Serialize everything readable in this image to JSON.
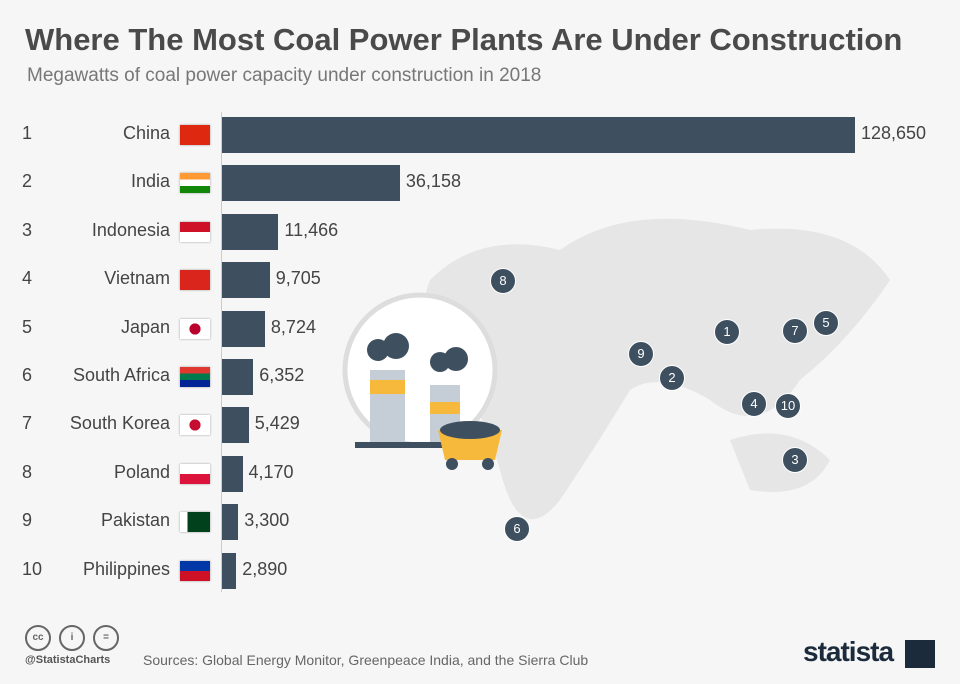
{
  "header": {
    "title": "Where The Most Coal Power Plants Are Under Construction",
    "subtitle": "Megawatts of coal power capacity under construction in 2018"
  },
  "chart_data": {
    "type": "bar",
    "orientation": "horizontal",
    "xlabel": "",
    "ylabel": "",
    "categories": [
      "China",
      "India",
      "Indonesia",
      "Vietnam",
      "Japan",
      "South Africa",
      "South Korea",
      "Poland",
      "Pakistan",
      "Philippines"
    ],
    "ranks": [
      "1",
      "2",
      "3",
      "4",
      "5",
      "6",
      "7",
      "8",
      "9",
      "10"
    ],
    "values": [
      128650,
      36158,
      11466,
      9705,
      8724,
      6352,
      5429,
      4170,
      3300,
      2890
    ],
    "value_labels": [
      "128,650",
      "36,158",
      "11,466",
      "9,705",
      "8,724",
      "6,352",
      "5,429",
      "4,170",
      "3,300",
      "2,890"
    ],
    "bar_color": "#3e5060",
    "map_markers": [
      "8",
      "1",
      "7",
      "5",
      "9",
      "2",
      "4",
      "10",
      "3",
      "6"
    ]
  },
  "footer": {
    "handle": "@StatistaCharts",
    "sources": "Sources: Global Energy Monitor, Greenpeace India, and the Sierra Club",
    "logo": "statista",
    "cc_icons": [
      "cc",
      "by",
      "nd"
    ]
  }
}
